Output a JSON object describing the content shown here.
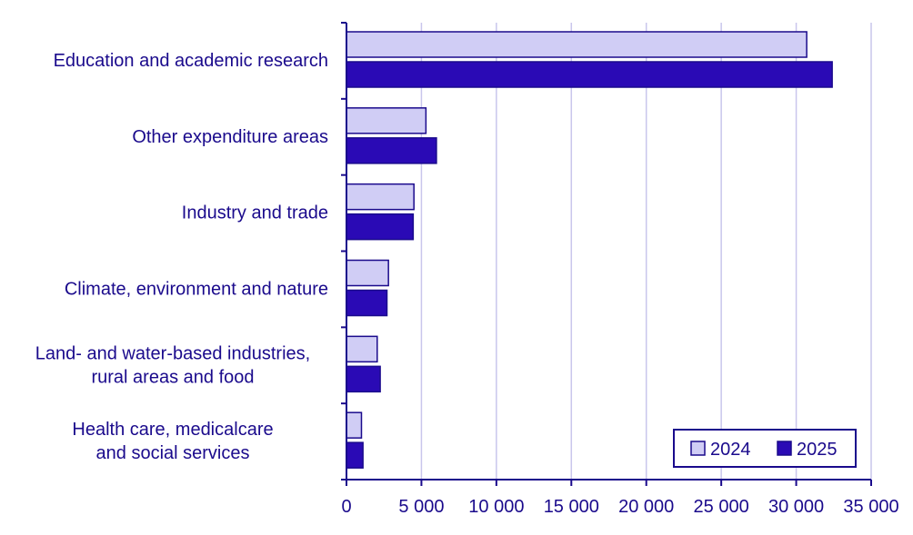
{
  "chart_data": {
    "type": "bar",
    "orientation": "horizontal",
    "title": "",
    "xlabel": "",
    "ylabel": "",
    "categories": [
      [
        "Education and academic research"
      ],
      [
        "Other expenditure areas"
      ],
      [
        "Industry and trade"
      ],
      [
        "Climate, environment and nature"
      ],
      [
        "Land- and water-based industries,",
        "rural areas and food"
      ],
      [
        "Health care, medicalcare",
        "and social services"
      ]
    ],
    "series": [
      {
        "name": "2024",
        "color": "#d0cdf5",
        "values": [
          30700,
          5300,
          4500,
          2800,
          2050,
          1000
        ]
      },
      {
        "name": "2025",
        "color": "#2a0ab5",
        "values": [
          32400,
          6000,
          4450,
          2700,
          2250,
          1100
        ]
      }
    ],
    "xlim": [
      0,
      35000
    ],
    "xticks": [
      0,
      5000,
      10000,
      15000,
      20000,
      25000,
      30000,
      35000
    ],
    "xtick_labels": [
      "0",
      "5 000",
      "10 000",
      "15 000",
      "20 000",
      "25 000",
      "30 000",
      "35 000"
    ],
    "grid": "vertical",
    "legend_position": "bottom-right",
    "axis_color": "#1a0a8c",
    "grid_color": "#c9c6ec",
    "text_color": "#1a0a8c"
  }
}
